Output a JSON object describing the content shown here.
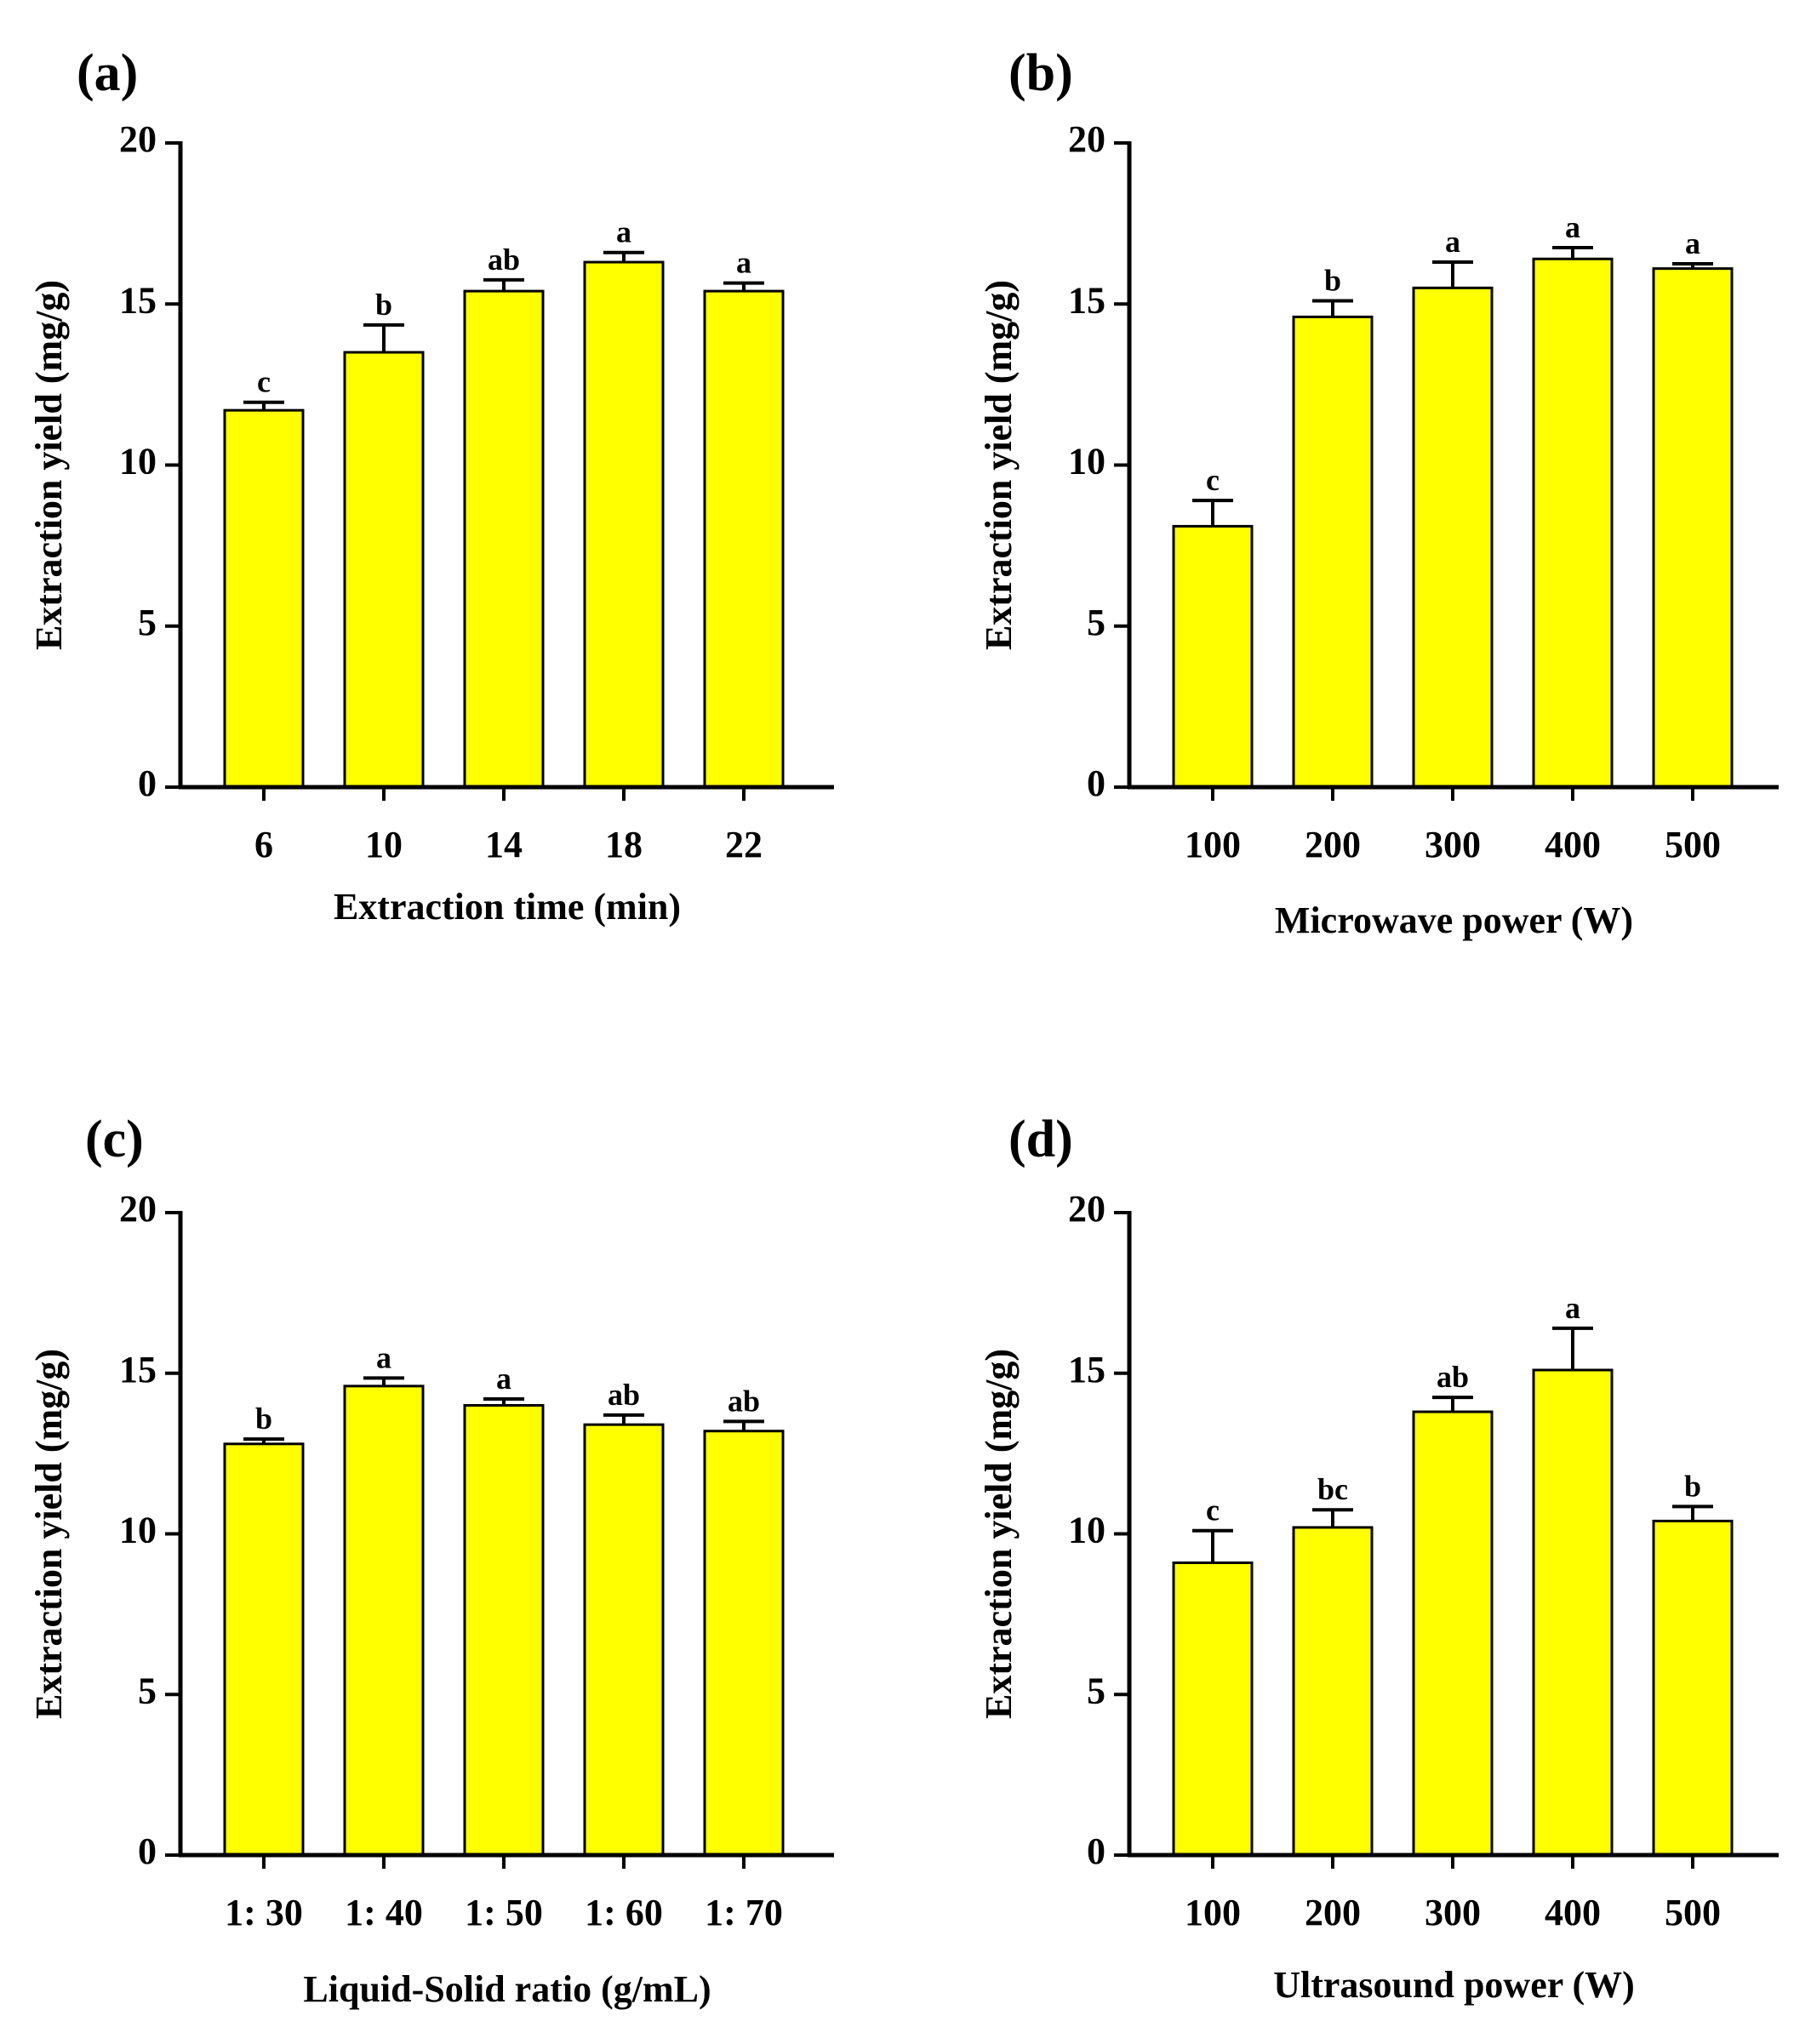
{
  "figure": {
    "background": "#ffffff",
    "bar_color": "#ffff00",
    "edge_color": "#000000"
  },
  "chart_data": [
    {
      "type": "bar",
      "panel_label": "(a)",
      "xlabel": "Extraction time (min)",
      "ylabel": "Extraction yield (mg/g)",
      "categories": [
        "6",
        "10",
        "14",
        "18",
        "22"
      ],
      "values": [
        11.7,
        13.5,
        15.4,
        16.3,
        15.4
      ],
      "errors": [
        0.25,
        0.85,
        0.35,
        0.3,
        0.25
      ],
      "letters": [
        "c",
        "b",
        "ab",
        "a",
        "a"
      ],
      "ylim": [
        0,
        20
      ],
      "yticks": [
        0,
        5,
        10,
        15,
        20
      ]
    },
    {
      "type": "bar",
      "panel_label": "(b)",
      "xlabel": "Microwave power (W)",
      "ylabel": "Extraction yield (mg/g)",
      "categories": [
        "100",
        "200",
        "300",
        "400",
        "500"
      ],
      "values": [
        8.1,
        14.6,
        15.5,
        16.4,
        16.1
      ],
      "errors": [
        0.8,
        0.5,
        0.8,
        0.35,
        0.15
      ],
      "letters": [
        "c",
        "b",
        "a",
        "a",
        "a"
      ],
      "ylim": [
        0,
        20
      ],
      "yticks": [
        0,
        5,
        10,
        15,
        20
      ]
    },
    {
      "type": "bar",
      "panel_label": "(c)",
      "xlabel": "Liquid-Solid ratio (g/mL)",
      "ylabel": "Extraction yield (mg/g)",
      "categories": [
        "1: 30",
        "1: 40",
        "1: 50",
        "1: 60",
        "1: 70"
      ],
      "values": [
        12.8,
        14.6,
        14.0,
        13.4,
        13.2
      ],
      "errors": [
        0.15,
        0.25,
        0.2,
        0.3,
        0.3
      ],
      "letters": [
        "b",
        "a",
        "a",
        "ab",
        "ab"
      ],
      "ylim": [
        0,
        20
      ],
      "yticks": [
        0,
        5,
        10,
        15,
        20
      ]
    },
    {
      "type": "bar",
      "panel_label": "(d)",
      "xlabel": "Ultrasound power  (W)",
      "ylabel": "Extraction yield (mg/g)",
      "categories": [
        "100",
        "200",
        "300",
        "400",
        "500"
      ],
      "values": [
        9.1,
        10.2,
        13.8,
        15.1,
        10.4
      ],
      "errors": [
        1.0,
        0.55,
        0.45,
        1.3,
        0.45
      ],
      "letters": [
        "c",
        "bc",
        "ab",
        "a",
        "b"
      ],
      "ylim": [
        0,
        20
      ],
      "yticks": [
        0,
        5,
        10,
        15,
        20
      ]
    }
  ]
}
